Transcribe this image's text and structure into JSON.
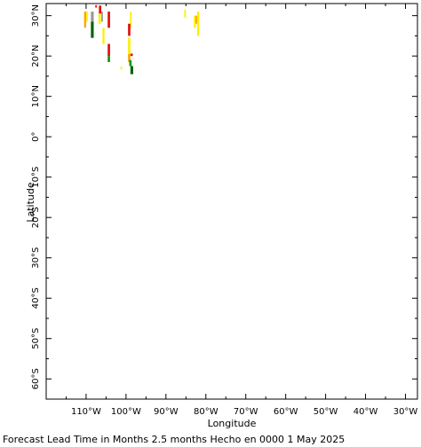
{
  "caption": "Forecast Lead Time in Months 2.5 months Hecho en 0000 1 May 2025",
  "chart_data": {
    "type": "heatmap",
    "xlabel": "Longitude",
    "ylabel": "Latitude",
    "xlim": [
      -120,
      -27
    ],
    "ylim": [
      -65,
      33
    ],
    "x_ticks": [
      {
        "value": -110,
        "label": "110°W"
      },
      {
        "value": -100,
        "label": "100°W"
      },
      {
        "value": -90,
        "label": "90°W"
      },
      {
        "value": -80,
        "label": "80°W"
      },
      {
        "value": -70,
        "label": "70°W"
      },
      {
        "value": -60,
        "label": "60°W"
      },
      {
        "value": -50,
        "label": "50°W"
      },
      {
        "value": -40,
        "label": "40°W"
      },
      {
        "value": -30,
        "label": "30°W"
      }
    ],
    "y_ticks": [
      {
        "value": 30,
        "label": "30°N"
      },
      {
        "value": 20,
        "label": "20°N"
      },
      {
        "value": 10,
        "label": "10°N"
      },
      {
        "value": 0,
        "label": "0°"
      },
      {
        "value": -10,
        "label": "10°S"
      },
      {
        "value": -20,
        "label": "20°S"
      },
      {
        "value": -30,
        "label": "30°S"
      },
      {
        "value": -40,
        "label": "40°S"
      },
      {
        "value": -50,
        "label": "50°S"
      },
      {
        "value": -60,
        "label": "60°S"
      }
    ],
    "colors": {
      "yellow": "#ffee00",
      "orange": "#ffa500",
      "red": "#dd1111",
      "green": "#119911",
      "darkgreen": "#006400",
      "gray": "#999999"
    },
    "cells": [
      {
        "lon0": -110.5,
        "lon1": -110.0,
        "lat0": 27.0,
        "lat1": 31.0,
        "color": "orange"
      },
      {
        "lon0": -110.0,
        "lon1": -109.6,
        "lat0": 28.5,
        "lat1": 31.0,
        "color": "yellow"
      },
      {
        "lon0": -108.8,
        "lon1": -108.1,
        "lat0": 24.5,
        "lat1": 28.5,
        "color": "darkgreen"
      },
      {
        "lon0": -108.8,
        "lon1": -108.1,
        "lat0": 28.5,
        "lat1": 31.0,
        "color": "gray"
      },
      {
        "lon0": -107.7,
        "lon1": -107.3,
        "lat0": 32.0,
        "lat1": 32.6,
        "color": "red"
      },
      {
        "lon0": -106.8,
        "lon1": -106.2,
        "lat0": 30.5,
        "lat1": 32.5,
        "color": "red"
      },
      {
        "lon0": -106.9,
        "lon1": -106.3,
        "lat0": 28.0,
        "lat1": 30.5,
        "color": "yellow"
      },
      {
        "lon0": -106.2,
        "lon1": -105.8,
        "lat0": 28.5,
        "lat1": 31.0,
        "color": "gray"
      },
      {
        "lon0": -105.9,
        "lon1": -105.4,
        "lat0": 23.0,
        "lat1": 27.0,
        "color": "yellow"
      },
      {
        "lon0": -104.6,
        "lon1": -104.0,
        "lat0": 27.0,
        "lat1": 31.0,
        "color": "red"
      },
      {
        "lon0": -104.6,
        "lon1": -104.0,
        "lat0": 20.0,
        "lat1": 23.0,
        "color": "red"
      },
      {
        "lon0": -104.6,
        "lon1": -104.0,
        "lat0": 18.5,
        "lat1": 20.0,
        "color": "green"
      },
      {
        "lon0": -101.4,
        "lon1": -101.0,
        "lat0": 16.7,
        "lat1": 17.3,
        "color": "yellow"
      },
      {
        "lon0": -99.0,
        "lon1": -98.6,
        "lat0": 27.0,
        "lat1": 31.0,
        "color": "yellow"
      },
      {
        "lon0": -99.5,
        "lon1": -98.9,
        "lat0": 25.0,
        "lat1": 28.0,
        "color": "red"
      },
      {
        "lon0": -99.5,
        "lon1": -98.9,
        "lat0": 20.5,
        "lat1": 24.5,
        "color": "yellow"
      },
      {
        "lon0": -98.9,
        "lon1": -98.3,
        "lat0": 20.0,
        "lat1": 20.6,
        "color": "red"
      },
      {
        "lon0": -99.5,
        "lon1": -98.9,
        "lat0": 18.5,
        "lat1": 20.5,
        "color": "orange"
      },
      {
        "lon0": -99.2,
        "lon1": -98.6,
        "lat0": 17.5,
        "lat1": 19.0,
        "color": "green"
      },
      {
        "lon0": -98.9,
        "lon1": -98.2,
        "lat0": 15.5,
        "lat1": 17.5,
        "color": "darkgreen"
      },
      {
        "lon0": -85.4,
        "lon1": -85.0,
        "lat0": 29.5,
        "lat1": 31.5,
        "color": "yellow"
      },
      {
        "lon0": -83.0,
        "lon1": -82.5,
        "lat0": 27.0,
        "lat1": 30.0,
        "color": "yellow"
      },
      {
        "lon0": -82.6,
        "lon1": -82.2,
        "lat0": 28.0,
        "lat1": 30.0,
        "color": "orange"
      },
      {
        "lon0": -82.2,
        "lon1": -81.7,
        "lat0": 25.0,
        "lat1": 31.0,
        "color": "yellow"
      }
    ]
  }
}
